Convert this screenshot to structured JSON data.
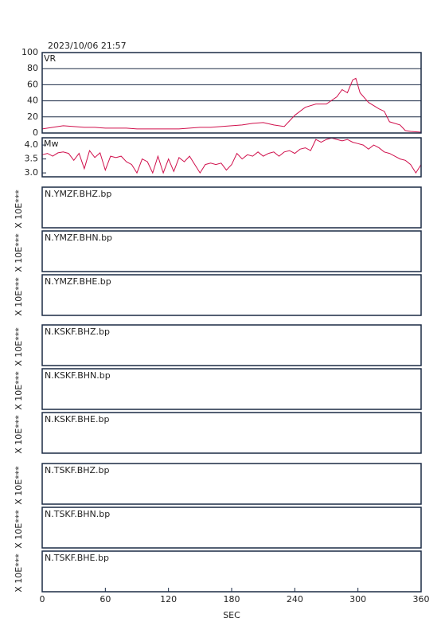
{
  "title": "2023/10/06 21:57",
  "x_axis": {
    "label": "SEC",
    "xlim": [
      0,
      360
    ],
    "xticks": [
      0,
      60,
      120,
      180,
      240,
      300,
      360
    ]
  },
  "chart_data": [
    {
      "type": "line",
      "label": "VR",
      "color": "#d0104c",
      "ylim": [
        0,
        100
      ],
      "yticks": [
        0,
        20,
        40,
        60,
        80,
        100
      ],
      "grid": true,
      "x": [
        0,
        10,
        20,
        30,
        40,
        50,
        60,
        70,
        80,
        90,
        100,
        110,
        120,
        130,
        140,
        150,
        160,
        170,
        180,
        190,
        200,
        210,
        220,
        230,
        240,
        250,
        260,
        270,
        280,
        285,
        290,
        295,
        298,
        302,
        310,
        320,
        325,
        330,
        340,
        345,
        350,
        360
      ],
      "values": [
        5,
        7,
        9,
        8,
        7,
        7,
        6,
        6,
        6,
        5,
        5,
        5,
        5,
        5,
        6,
        7,
        7,
        8,
        9,
        10,
        12,
        13,
        10,
        8,
        22,
        32,
        36,
        36,
        45,
        54,
        50,
        66,
        68,
        50,
        38,
        30,
        27,
        14,
        10,
        3,
        2,
        1
      ]
    },
    {
      "type": "line",
      "label": "Mw",
      "color": "#d0104c",
      "ylim": [
        2.86,
        4.26
      ],
      "yticks": [
        {
          "value": 3,
          "label": "3.0"
        },
        3.5,
        {
          "value": 4,
          "label": "4.0"
        }
      ],
      "grid": false,
      "x": [
        0,
        5,
        10,
        15,
        20,
        25,
        30,
        35,
        40,
        45,
        50,
        55,
        60,
        65,
        70,
        75,
        80,
        85,
        90,
        95,
        100,
        105,
        110,
        115,
        120,
        125,
        130,
        135,
        140,
        145,
        150,
        155,
        160,
        165,
        170,
        175,
        180,
        185,
        190,
        195,
        200,
        205,
        210,
        215,
        220,
        225,
        230,
        235,
        240,
        245,
        250,
        255,
        260,
        265,
        270,
        275,
        280,
        285,
        290,
        295,
        300,
        305,
        310,
        315,
        320,
        325,
        330,
        335,
        340,
        345,
        350,
        355,
        360
      ],
      "values": [
        3.65,
        3.7,
        3.6,
        3.72,
        3.75,
        3.7,
        3.45,
        3.7,
        3.15,
        3.8,
        3.55,
        3.72,
        3.1,
        3.6,
        3.55,
        3.6,
        3.4,
        3.3,
        3.0,
        3.5,
        3.4,
        3.0,
        3.6,
        3.0,
        3.5,
        3.05,
        3.55,
        3.4,
        3.6,
        3.3,
        3.0,
        3.3,
        3.35,
        3.3,
        3.35,
        3.1,
        3.3,
        3.7,
        3.5,
        3.65,
        3.6,
        3.75,
        3.6,
        3.7,
        3.75,
        3.6,
        3.75,
        3.8,
        3.7,
        3.85,
        3.9,
        3.8,
        4.2,
        4.1,
        4.2,
        4.25,
        4.2,
        4.15,
        4.2,
        4.1,
        4.05,
        4.0,
        3.85,
        4.0,
        3.9,
        3.75,
        3.7,
        3.6,
        3.5,
        3.45,
        3.3,
        3.0,
        3.3
      ]
    },
    {
      "type": "waveform",
      "label": "N.YMZF.BHZ.bp",
      "ylabel": "X 10E***"
    },
    {
      "type": "waveform",
      "label": "N.YMZF.BHN.bp",
      "ylabel": "X 10E***"
    },
    {
      "type": "waveform",
      "label": "N.YMZF.BHE.bp",
      "ylabel": "X 10E***"
    },
    {
      "type": "waveform",
      "label": "N.KSKF.BHZ.bp",
      "ylabel": "X 10E***"
    },
    {
      "type": "waveform",
      "label": "N.KSKF.BHN.bp",
      "ylabel": "X 10E***"
    },
    {
      "type": "waveform",
      "label": "N.KSKF.BHE.bp",
      "ylabel": "X 10E***"
    },
    {
      "type": "waveform",
      "label": "N.TSKF.BHZ.bp",
      "ylabel": "X 10E***"
    },
    {
      "type": "waveform",
      "label": "N.TSKF.BHN.bp",
      "ylabel": "X 10E***"
    },
    {
      "type": "waveform",
      "label": "N.TSKF.BHE.bp",
      "ylabel": "X 10E***"
    }
  ]
}
